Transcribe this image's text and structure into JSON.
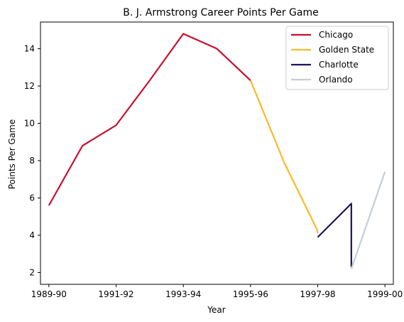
{
  "chart_data": {
    "type": "line",
    "title": "B. J. Armstrong Career Points Per Game",
    "xlabel": "Year",
    "ylabel": "Points Per Game",
    "x_ticks": [
      "1989-90",
      "1991-92",
      "1993-94",
      "1995-96",
      "1997-98",
      "1999-00"
    ],
    "x_tick_values": [
      0,
      2,
      4,
      6,
      8,
      10
    ],
    "xlim": [
      -0.25,
      10.25
    ],
    "ylim": [
      1.37,
      15.43
    ],
    "y_ticks": [
      2,
      4,
      6,
      8,
      10,
      12,
      14
    ],
    "grid": false,
    "legend_placement": "top-right",
    "series": [
      {
        "name": "Chicago",
        "color": "#C8102E",
        "points": [
          [
            0,
            5.6
          ],
          [
            1,
            8.8
          ],
          [
            2,
            9.9
          ],
          [
            3,
            12.3
          ],
          [
            4,
            14.8
          ],
          [
            5,
            14.0
          ],
          [
            6,
            12.3
          ]
        ]
      },
      {
        "name": "Golden State",
        "color": "#FDB927",
        "points": [
          [
            6,
            12.3
          ],
          [
            7,
            7.9
          ],
          [
            7.98,
            4.3
          ],
          [
            8,
            4.1
          ]
        ]
      },
      {
        "name": "Charlotte",
        "color": "#1D1160",
        "points": [
          [
            8,
            3.9
          ],
          [
            9,
            5.7
          ],
          [
            9,
            2.3
          ]
        ]
      },
      {
        "name": "Orlando",
        "color": "#C4CED4",
        "points": [
          [
            9,
            2.2
          ],
          [
            10,
            7.4
          ]
        ]
      }
    ]
  }
}
